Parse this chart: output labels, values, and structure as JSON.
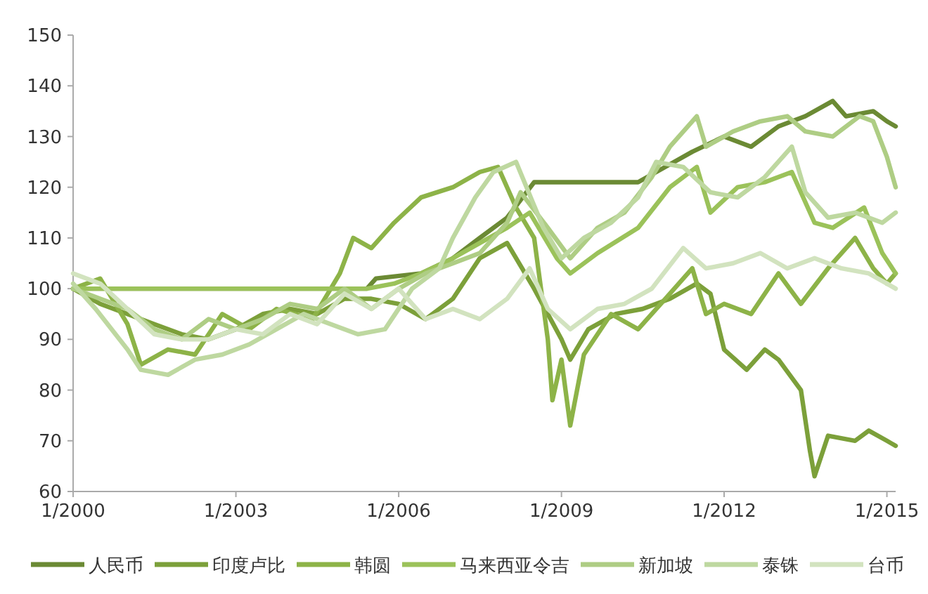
{
  "chart_data": {
    "type": "line",
    "line_style": "solid",
    "legend": "bottom",
    "grid": false,
    "xlim": [
      "2000-01",
      "2015-03"
    ],
    "xticks": [
      {
        "value": "2000-01",
        "label": "1/2000"
      },
      {
        "value": "2003-01",
        "label": "1/2003"
      },
      {
        "value": "2006-01",
        "label": "1/2006"
      },
      {
        "value": "2009-01",
        "label": "1/2009"
      },
      {
        "value": "2012-01",
        "label": "1/2012"
      },
      {
        "value": "2015-01",
        "label": "1/2015"
      }
    ],
    "ylim": [
      60,
      150
    ],
    "yticks": [
      60,
      70,
      80,
      90,
      100,
      110,
      120,
      130,
      140,
      150
    ],
    "series": [
      {
        "name": "人民币",
        "color": "#6b8a34",
        "x": [
          "2000-01",
          "2005-06",
          "2005-08",
          "2006-06",
          "2007-01",
          "2007-07",
          "2008-01",
          "2008-07",
          "2009-06",
          "2010-06",
          "2010-12",
          "2011-06",
          "2012-01",
          "2012-07",
          "2013-01",
          "2013-07",
          "2014-01",
          "2014-04",
          "2014-10",
          "2015-01",
          "2015-03"
        ],
        "values": [
          100,
          100,
          102,
          103,
          106,
          110,
          114,
          121,
          121,
          121,
          124,
          127,
          130,
          128,
          132,
          134,
          137,
          134,
          135,
          133,
          132
        ]
      },
      {
        "name": "印度卢比",
        "color": "#7ca03a",
        "x": [
          "2000-01",
          "2000-07",
          "2001-01",
          "2001-07",
          "2002-01",
          "2002-07",
          "2003-01",
          "2003-07",
          "2004-01",
          "2004-07",
          "2005-01",
          "2005-07",
          "2006-01",
          "2006-07",
          "2007-01",
          "2007-07",
          "2008-01",
          "2008-07",
          "2009-01",
          "2009-03",
          "2009-07",
          "2010-01",
          "2010-07",
          "2011-01",
          "2011-07",
          "2011-10",
          "2012-01",
          "2012-06",
          "2012-10",
          "2013-01",
          "2013-06",
          "2013-08",
          "2013-09",
          "2013-12",
          "2014-06",
          "2014-09",
          "2015-01",
          "2015-03"
        ],
        "values": [
          100,
          97,
          95,
          93,
          91,
          90,
          92,
          95,
          96,
          95,
          98,
          98,
          97,
          94,
          98,
          106,
          109,
          100,
          90,
          86,
          92,
          95,
          96,
          98,
          101,
          99,
          88,
          84,
          88,
          86,
          80,
          68,
          63,
          71,
          70,
          72,
          70,
          69
        ]
      },
      {
        "name": "韩圆",
        "color": "#8db348",
        "x": [
          "2000-01",
          "2000-07",
          "2001-01",
          "2001-04",
          "2001-10",
          "2002-04",
          "2002-10",
          "2003-04",
          "2003-10",
          "2004-06",
          "2004-12",
          "2005-03",
          "2005-07",
          "2005-12",
          "2006-06",
          "2007-01",
          "2007-07",
          "2007-11",
          "2008-03",
          "2008-07",
          "2008-10",
          "2008-11",
          "2009-01",
          "2009-03",
          "2009-06",
          "2009-12",
          "2010-06",
          "2010-12",
          "2011-06",
          "2011-09",
          "2012-01",
          "2012-07",
          "2013-01",
          "2013-06",
          "2013-12",
          "2014-06",
          "2014-10",
          "2015-01",
          "2015-03"
        ],
        "values": [
          100,
          102,
          93,
          85,
          88,
          87,
          95,
          92,
          96,
          94,
          103,
          110,
          108,
          113,
          118,
          120,
          123,
          124,
          116,
          110,
          90,
          78,
          86,
          73,
          87,
          95,
          92,
          98,
          104,
          95,
          97,
          95,
          103,
          97,
          104,
          110,
          104,
          101,
          103
        ]
      },
      {
        "name": "马来西亚令吉",
        "color": "#9bc25a",
        "x": [
          "2000-01",
          "2005-06",
          "2005-12",
          "2006-06",
          "2007-01",
          "2007-07",
          "2008-01",
          "2008-06",
          "2008-12",
          "2009-03",
          "2009-09",
          "2010-06",
          "2011-01",
          "2011-07",
          "2011-10",
          "2012-04",
          "2012-10",
          "2013-04",
          "2013-09",
          "2014-01",
          "2014-08",
          "2014-12",
          "2015-03"
        ],
        "values": [
          100,
          100,
          101,
          103,
          106,
          109,
          112,
          115,
          106,
          103,
          107,
          112,
          120,
          124,
          115,
          120,
          121,
          123,
          113,
          112,
          116,
          107,
          103
        ]
      },
      {
        "name": "新加坡",
        "color": "#aecd84",
        "x": [
          "2000-01",
          "2000-07",
          "2001-01",
          "2001-07",
          "2002-01",
          "2002-07",
          "2003-01",
          "2003-07",
          "2004-01",
          "2004-07",
          "2005-01",
          "2005-07",
          "2006-01",
          "2006-07",
          "2007-01",
          "2007-07",
          "2008-01",
          "2008-04",
          "2008-10",
          "2009-03",
          "2009-09",
          "2010-03",
          "2010-09",
          "2011-01",
          "2011-07",
          "2011-09",
          "2012-03",
          "2012-09",
          "2013-03",
          "2013-07",
          "2014-01",
          "2014-07",
          "2014-10",
          "2015-01",
          "2015-03"
        ],
        "values": [
          100,
          98,
          96,
          92,
          90,
          94,
          92,
          94,
          97,
          96,
          100,
          96,
          100,
          103,
          105,
          107,
          113,
          119,
          112,
          106,
          112,
          115,
          122,
          128,
          134,
          128,
          131,
          133,
          134,
          131,
          130,
          134,
          133,
          126,
          120
        ]
      },
      {
        "name": "泰铢",
        "color": "#bed8a0",
        "x": [
          "2000-01",
          "2000-06",
          "2001-01",
          "2001-04",
          "2001-10",
          "2002-04",
          "2002-10",
          "2003-04",
          "2003-10",
          "2004-04",
          "2004-10",
          "2005-04",
          "2005-10",
          "2006-04",
          "2006-10",
          "2007-01",
          "2007-06",
          "2007-10",
          "2008-03",
          "2008-09",
          "2009-01",
          "2009-06",
          "2009-12",
          "2010-06",
          "2010-10",
          "2011-04",
          "2011-10",
          "2012-04",
          "2012-10",
          "2013-04",
          "2013-07",
          "2013-12",
          "2014-06",
          "2014-12",
          "2015-03"
        ],
        "values": [
          101,
          96,
          88,
          84,
          83,
          86,
          87,
          89,
          92,
          95,
          93,
          91,
          92,
          100,
          104,
          110,
          118,
          123,
          125,
          112,
          106,
          110,
          113,
          118,
          125,
          124,
          119,
          118,
          122,
          128,
          119,
          114,
          115,
          113,
          115
        ]
      },
      {
        "name": "台币",
        "color": "#d2e3bf",
        "x": [
          "2000-01",
          "2000-07",
          "2001-01",
          "2001-07",
          "2002-01",
          "2002-07",
          "2003-01",
          "2003-07",
          "2004-01",
          "2004-07",
          "2005-01",
          "2005-07",
          "2006-01",
          "2006-07",
          "2007-01",
          "2007-07",
          "2008-01",
          "2008-06",
          "2008-10",
          "2009-03",
          "2009-09",
          "2010-03",
          "2010-09",
          "2011-04",
          "2011-09",
          "2012-03",
          "2012-09",
          "2013-03",
          "2013-09",
          "2014-03",
          "2014-09",
          "2015-01",
          "2015-03"
        ],
        "values": [
          103,
          101,
          96,
          91,
          90,
          90,
          92,
          91,
          95,
          93,
          99,
          96,
          100,
          94,
          96,
          94,
          98,
          104,
          96,
          92,
          96,
          97,
          100,
          108,
          104,
          105,
          107,
          104,
          106,
          104,
          103,
          101,
          100
        ]
      }
    ]
  }
}
